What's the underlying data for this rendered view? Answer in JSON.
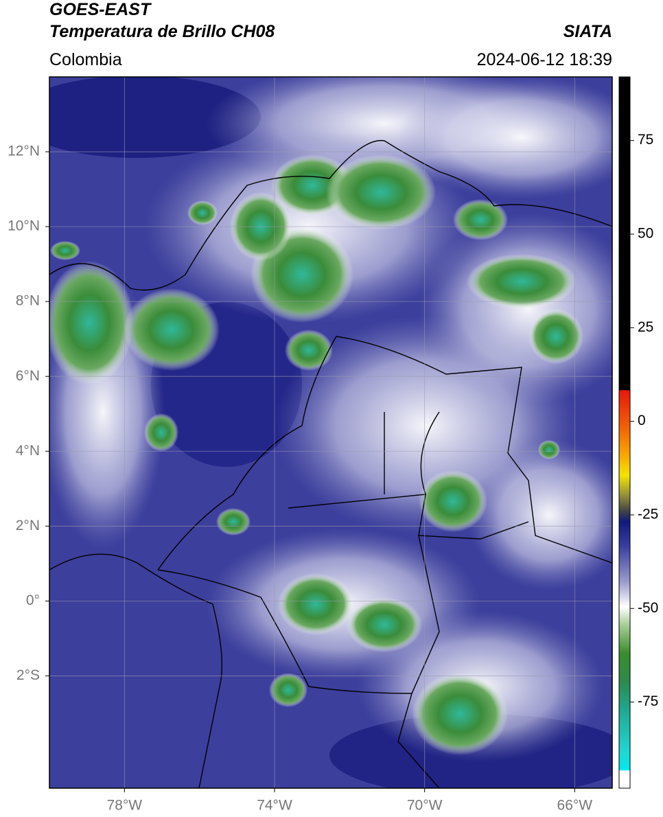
{
  "header": {
    "title_line1": "GOES-EAST",
    "title_line2": "Temperatura de Brillo CH08",
    "source": "SIATA",
    "region": "Colombia",
    "datetime": "2024-06-12 18:39"
  },
  "map": {
    "xlim": [
      -80,
      -65
    ],
    "ylim": [
      -5,
      14
    ],
    "xticks": [
      {
        "value": -78,
        "label": "78°W"
      },
      {
        "value": -74,
        "label": "74°W"
      },
      {
        "value": -70,
        "label": "70°W"
      },
      {
        "value": -66,
        "label": "66°W"
      }
    ],
    "yticks": [
      {
        "value": 12,
        "label": "12°N"
      },
      {
        "value": 10,
        "label": "10°N"
      },
      {
        "value": 8,
        "label": "8°N"
      },
      {
        "value": 6,
        "label": "6°N"
      },
      {
        "value": 4,
        "label": "4°N"
      },
      {
        "value": 2,
        "label": "2°N"
      },
      {
        "value": 0,
        "label": "0°"
      },
      {
        "value": -2,
        "label": "2°S"
      }
    ],
    "grid": true
  },
  "colorbar": {
    "lim": [
      -98,
      92
    ],
    "ticks": [
      75,
      50,
      25,
      0,
      -25,
      -50,
      -75
    ]
  }
}
